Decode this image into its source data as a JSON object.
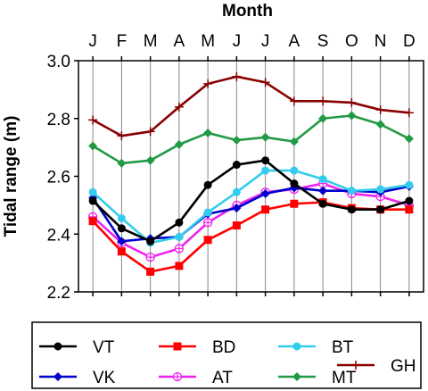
{
  "chart_data": {
    "type": "line",
    "xlabel": "Month",
    "ylabel": "Tidal range (m)",
    "categories": [
      "J",
      "F",
      "M",
      "A",
      "M",
      "J",
      "J",
      "A",
      "S",
      "O",
      "N",
      "D"
    ],
    "ylim": [
      2.2,
      3.0
    ],
    "yticks": [
      "2.2",
      "2.4",
      "2.6",
      "2.8",
      "3.0"
    ],
    "grid": "vertical",
    "legend_position": "bottom",
    "series": [
      {
        "name": "VT",
        "color": "#000000",
        "marker": "circle",
        "values": [
          2.515,
          2.42,
          2.375,
          2.44,
          2.57,
          2.64,
          2.655,
          2.575,
          2.505,
          2.485,
          2.485,
          2.515
        ]
      },
      {
        "name": "BD",
        "color": "#ff0000",
        "marker": "square",
        "values": [
          2.445,
          2.34,
          2.27,
          2.29,
          2.38,
          2.43,
          2.485,
          2.505,
          2.51,
          2.49,
          2.485,
          2.485
        ]
      },
      {
        "name": "BT",
        "color": "#33ccee",
        "marker": "circle",
        "values": [
          2.545,
          2.455,
          2.37,
          2.39,
          2.475,
          2.545,
          2.62,
          2.62,
          2.59,
          2.55,
          2.555,
          2.57
        ]
      },
      {
        "name": "VK",
        "color": "#0000cc",
        "marker": "diamond",
        "values": [
          2.525,
          2.375,
          2.385,
          2.39,
          2.47,
          2.49,
          2.54,
          2.56,
          2.55,
          2.55,
          2.545,
          2.565
        ]
      },
      {
        "name": "AT",
        "color": "#ee22ee",
        "marker": "circle-plus",
        "values": [
          2.46,
          2.37,
          2.32,
          2.35,
          2.44,
          2.5,
          2.545,
          2.555,
          2.575,
          2.54,
          2.53,
          2.5
        ]
      },
      {
        "name": "MT",
        "color": "#229944",
        "marker": "diamond",
        "values": [
          2.705,
          2.645,
          2.655,
          2.71,
          2.75,
          2.725,
          2.735,
          2.72,
          2.8,
          2.81,
          2.78,
          2.73
        ]
      },
      {
        "name": "GH",
        "color": "#880000",
        "marker": "plus",
        "values": [
          2.795,
          2.74,
          2.755,
          2.84,
          2.92,
          2.945,
          2.925,
          2.86,
          2.86,
          2.855,
          2.83,
          2.82
        ]
      }
    ]
  }
}
